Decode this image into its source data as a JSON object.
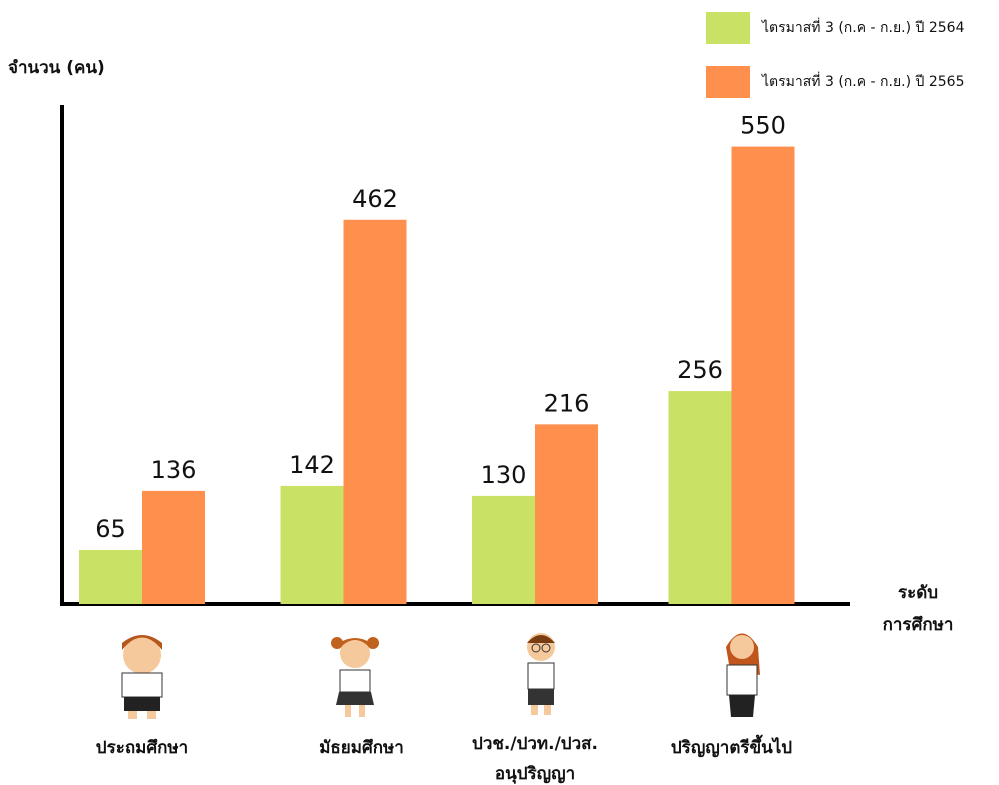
{
  "chart_data": {
    "type": "bar",
    "y_label": "จำนวน (คน)",
    "x_label": "ระดับ การศึกษา",
    "categories": [
      "ประถมศึกษา",
      "มัธยมศึกษา",
      "ปวช./ปวท./ปวส. อนุปริญญา",
      "ปริญญาตรีขึ้นไป"
    ],
    "series": [
      {
        "name": "ไตรมาสที่ 3 (ก.ค - ก.ย.) ปี 2564",
        "color": "#c9e265",
        "values": [
          65,
          142,
          130,
          256
        ]
      },
      {
        "name": "ไตรมาสที่ 3 (ก.ค - ก.ย.) ปี 2565",
        "color": "#ff8f4c",
        "values": [
          136,
          462,
          216,
          550
        ]
      }
    ],
    "ylim": [
      0,
      600
    ],
    "legend": "top-right"
  }
}
